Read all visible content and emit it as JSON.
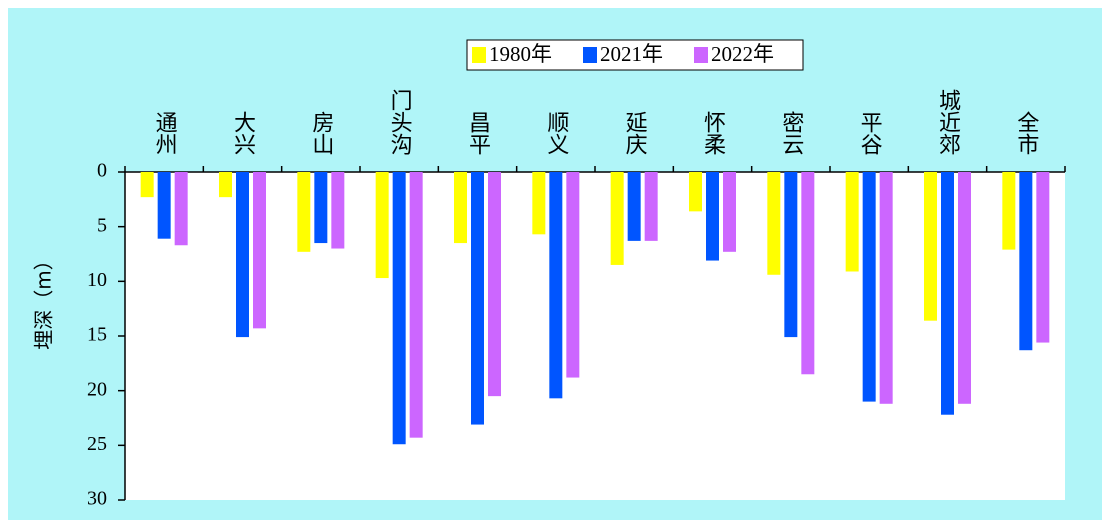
{
  "chart_data": {
    "type": "bar",
    "y_label": "埋深（m）",
    "inverted_y": true,
    "categories": [
      "通州",
      "大兴",
      "房山",
      "门头沟",
      "昌平",
      "顺义",
      "延庆",
      "怀柔",
      "密云",
      "平谷",
      "城近郊",
      "全市"
    ],
    "series": [
      {
        "name": "1980年",
        "color": "#ffff00",
        "values": [
          2.3,
          2.3,
          7.3,
          9.7,
          6.5,
          5.7,
          8.5,
          3.6,
          9.4,
          9.1,
          13.6,
          7.1
        ]
      },
      {
        "name": "2021年",
        "color": "#0055ff",
        "values": [
          6.1,
          15.1,
          6.5,
          24.9,
          23.1,
          20.7,
          6.3,
          8.1,
          15.1,
          21.0,
          22.2,
          16.3
        ]
      },
      {
        "name": "2022年",
        "color": "#cc66ff",
        "values": [
          6.7,
          14.3,
          7.0,
          24.3,
          20.5,
          18.8,
          6.3,
          7.3,
          18.5,
          21.2,
          21.2,
          15.6
        ]
      }
    ],
    "ylim": [
      0,
      30
    ],
    "yticks": [
      0,
      5,
      10,
      15,
      20,
      25,
      30
    ],
    "legend": "top"
  }
}
